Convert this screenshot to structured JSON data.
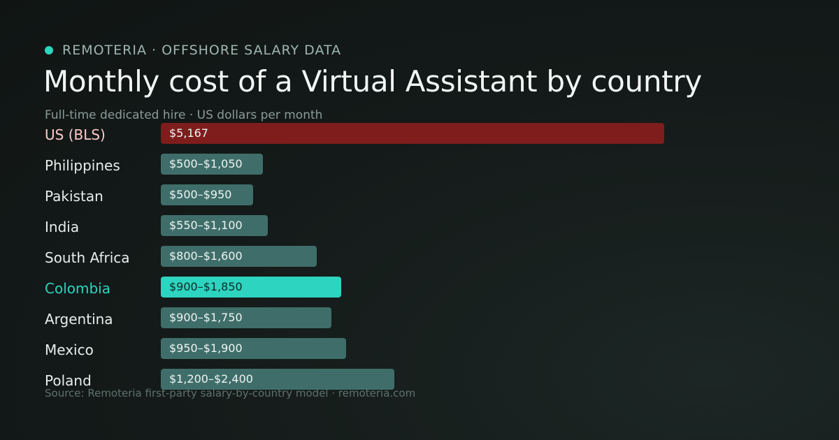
{
  "brand": {
    "text": "REMOTERIA · OFFSHORE SALARY DATA",
    "dot_color": "#2dd4bf"
  },
  "title": "Monthly cost of a Virtual Assistant by country",
  "subtitle": "Full-time dedicated hire · US dollars per month",
  "source": "Source: Remoteria first-party salary-by-country model · remoteria.com",
  "colors": {
    "baseline": "#7f1d1d",
    "baseline_label": "#fecaca",
    "highlight": "#2dd4bf",
    "highlight_label": "#2dd4bf",
    "default": "#3f6e6a",
    "highlight_text": "#0f2a27"
  },
  "chart_data": {
    "type": "bar",
    "orientation": "horizontal",
    "unit": "USD per month",
    "xlim": [
      0,
      5167
    ],
    "grid": false,
    "categories": [
      "US (BLS)",
      "Philippines",
      "Pakistan",
      "India",
      "South Africa",
      "Colombia",
      "Argentina",
      "Mexico",
      "Poland"
    ],
    "rows": [
      {
        "name": "US (BLS)",
        "value_label": "$5,167",
        "low": 5167,
        "high": 5167,
        "style": "baseline"
      },
      {
        "name": "Philippines",
        "value_label": "$500–$1,050",
        "low": 500,
        "high": 1050,
        "style": "default"
      },
      {
        "name": "Pakistan",
        "value_label": "$500–$950",
        "low": 500,
        "high": 950,
        "style": "default"
      },
      {
        "name": "India",
        "value_label": "$550–$1,100",
        "low": 550,
        "high": 1100,
        "style": "default"
      },
      {
        "name": "South Africa",
        "value_label": "$800–$1,600",
        "low": 800,
        "high": 1600,
        "style": "default"
      },
      {
        "name": "Colombia",
        "value_label": "$900–$1,850",
        "low": 900,
        "high": 1850,
        "style": "highlight"
      },
      {
        "name": "Argentina",
        "value_label": "$900–$1,750",
        "low": 900,
        "high": 1750,
        "style": "default"
      },
      {
        "name": "Mexico",
        "value_label": "$950–$1,900",
        "low": 950,
        "high": 1900,
        "style": "default"
      },
      {
        "name": "Poland",
        "value_label": "$1,200–$2,400",
        "low": 1200,
        "high": 2400,
        "style": "default"
      }
    ]
  }
}
